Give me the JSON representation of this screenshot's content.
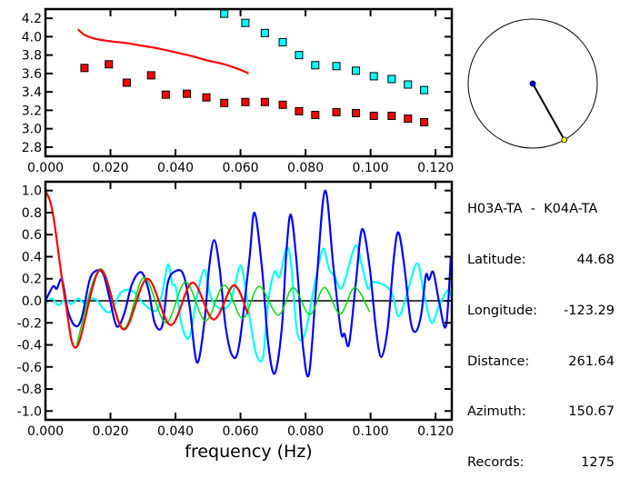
{
  "info": {
    "station_pair": "H03A-TA  -  K04A-TA",
    "rows": [
      {
        "label": "Latitude:",
        "value": "44.68"
      },
      {
        "label": "Longitude:",
        "value": "-123.29"
      },
      {
        "label": "Distance:",
        "value": "261.64"
      },
      {
        "label": "Azimuth:",
        "value": "150.67"
      },
      {
        "label": "Records:",
        "value": "1275"
      }
    ]
  },
  "azimuth_deg": 150.67,
  "colors": {
    "red": "#ff0000",
    "cyan": "#00ffff",
    "blue": "#0000ff",
    "green": "#00dd00",
    "yellow": "#ffff00"
  },
  "chart_data": [
    {
      "type": "scatter",
      "xlim": [
        0,
        0.125
      ],
      "ylim": [
        2.7,
        4.3
      ],
      "xticks": [
        "0.000",
        "0.020",
        "0.040",
        "0.060",
        "0.080",
        "0.100",
        "0.120"
      ],
      "yticks": [
        "2.8",
        "3.0",
        "3.2",
        "3.4",
        "3.6",
        "3.8",
        "4.0",
        "4.2"
      ],
      "series": [
        {
          "kind": "squares",
          "color": "#ff0000",
          "x": [
            0.012,
            0.0195,
            0.025,
            0.0325,
            0.037,
            0.0435,
            0.0495,
            0.055,
            0.0615,
            0.0675,
            0.073,
            0.078,
            0.083,
            0.0895,
            0.0955,
            0.101,
            0.1065,
            0.1115,
            0.1165
          ],
          "y": [
            3.66,
            3.7,
            3.5,
            3.58,
            3.37,
            3.38,
            3.34,
            3.28,
            3.29,
            3.29,
            3.26,
            3.19,
            3.15,
            3.18,
            3.17,
            3.14,
            3.14,
            3.11,
            3.07
          ]
        },
        {
          "kind": "squares",
          "color": "#00ffff",
          "x": [
            0.055,
            0.0615,
            0.0675,
            0.073,
            0.078,
            0.083,
            0.0895,
            0.0955,
            0.101,
            0.1065,
            0.1115,
            0.1165
          ],
          "y": [
            4.25,
            4.15,
            4.04,
            3.94,
            3.8,
            3.69,
            3.68,
            3.63,
            3.57,
            3.54,
            3.48,
            3.42
          ]
        },
        {
          "kind": "line",
          "color": "#ff0000",
          "x": [
            0.01,
            0.012,
            0.015,
            0.02,
            0.025,
            0.03,
            0.035,
            0.04,
            0.045,
            0.05,
            0.055,
            0.06,
            0.0625
          ],
          "y": [
            4.08,
            4.02,
            3.98,
            3.95,
            3.93,
            3.9,
            3.87,
            3.83,
            3.79,
            3.74,
            3.7,
            3.64,
            3.6
          ]
        }
      ]
    },
    {
      "type": "line",
      "xlabel": "frequency (Hz)",
      "xlim": [
        0,
        0.125
      ],
      "ylim": [
        -1.08,
        1.08
      ],
      "xticks": [
        "0.000",
        "0.020",
        "0.040",
        "0.060",
        "0.080",
        "0.100",
        "0.120"
      ],
      "yticks": [
        "-1.0",
        "-0.8",
        "-0.6",
        "-0.4",
        "-0.2",
        "0.0",
        "0.2",
        "0.4",
        "0.6",
        "0.8",
        "1.0"
      ],
      "series": [
        {
          "color": "#00ffff",
          "x": [
            0,
            0.002,
            0.004,
            0.006,
            0.008,
            0.01,
            0.012,
            0.014,
            0.016,
            0.0177,
            0.02,
            0.0228,
            0.0252,
            0.0275,
            0.0303,
            0.034,
            0.0359,
            0.0377,
            0.039,
            0.0401,
            0.042,
            0.0443,
            0.0466,
            0.0489,
            0.0508,
            0.0536,
            0.0564,
            0.0582,
            0.0603,
            0.0629,
            0.0648,
            0.0669,
            0.0685,
            0.0704,
            0.072,
            0.0741,
            0.0755,
            0.0774,
            0.0797,
            0.0825,
            0.0853,
            0.0872,
            0.089,
            0.0913,
            0.0953,
            0.0974,
            0.0992,
            0.1006,
            0.1044,
            0.1067,
            0.1086,
            0.1109,
            0.1143,
            0.1165,
            0.1188,
            0.1211,
            0.1239,
            0.125
          ],
          "y": [
            -0.03,
            0.02,
            -0.04,
            0.01,
            -0.03,
            0.02,
            -0.02,
            0.02,
            0.0,
            -0.07,
            -0.1,
            0.06,
            0.1,
            0.07,
            -0.03,
            -0.09,
            0.07,
            0.33,
            0.15,
            0.12,
            -0.23,
            -0.33,
            0.04,
            0.28,
            0.04,
            -0.07,
            -0.04,
            0.13,
            0.31,
            -0.17,
            -0.48,
            -0.51,
            -0.01,
            0.26,
            0.22,
            0.48,
            0.35,
            -0.28,
            -0.31,
            0.1,
            0.47,
            0.29,
            0.22,
            0.12,
            0.5,
            0.31,
            0.11,
            0.17,
            0.14,
            0.06,
            -0.14,
            0.03,
            0.34,
            0.05,
            -0.2,
            -0.04,
            0.1,
            0.02
          ]
        },
        {
          "color": "#0000ff",
          "x": [
            0,
            0.0023,
            0.0035,
            0.0051,
            0.007,
            0.0093,
            0.0112,
            0.0135,
            0.0154,
            0.0177,
            0.0196,
            0.0219,
            0.0242,
            0.0266,
            0.0294,
            0.0317,
            0.0336,
            0.0359,
            0.0377,
            0.0401,
            0.0424,
            0.0443,
            0.0466,
            0.0489,
            0.0503,
            0.0519,
            0.0536,
            0.0554,
            0.0575,
            0.0596,
            0.0627,
            0.0643,
            0.0666,
            0.0685,
            0.0705,
            0.0727,
            0.0741,
            0.0755,
            0.0774,
            0.0792,
            0.0811,
            0.0834,
            0.086,
            0.0886,
            0.0909,
            0.092,
            0.0934,
            0.0955,
            0.0974,
            0.0997,
            0.1016,
            0.1033,
            0.1053,
            0.1072,
            0.1086,
            0.1104,
            0.1123,
            0.1139,
            0.1156,
            0.117,
            0.118,
            0.1193,
            0.1211,
            0.1232,
            0.1247
          ],
          "y": [
            0.0,
            0.13,
            0.11,
            0.19,
            -0.1,
            -0.23,
            -0.15,
            0.18,
            0.27,
            0.25,
            0.04,
            -0.23,
            -0.12,
            0.15,
            0.26,
            0.1,
            -0.2,
            -0.23,
            0.17,
            0.27,
            0.24,
            -0.04,
            -0.56,
            -0.19,
            0.29,
            0.55,
            0.29,
            -0.23,
            -0.5,
            -0.4,
            0.37,
            0.8,
            0.3,
            -0.38,
            -0.66,
            -0.25,
            0.44,
            0.78,
            0.3,
            -0.41,
            -0.66,
            0.17,
            1.0,
            0.3,
            -0.28,
            -0.3,
            -0.39,
            0.17,
            0.65,
            0.31,
            -0.24,
            -0.51,
            -0.24,
            0.4,
            0.62,
            0.31,
            -0.18,
            -0.28,
            -0.12,
            0.23,
            0.19,
            0.26,
            -0.01,
            -0.23,
            0.4
          ]
        },
        {
          "color": "#00dd00",
          "x": [
            0.0096,
            0.0168,
            0.024,
            0.0303,
            0.037,
            0.0431,
            0.0492,
            0.055,
            0.0606,
            0.0657,
            0.0716,
            0.0762,
            0.0813,
            0.0858,
            0.0906,
            0.0951,
            0.0997
          ],
          "y": [
            -0.4,
            0.29,
            -0.25,
            0.21,
            -0.2,
            0.17,
            -0.18,
            0.14,
            -0.16,
            0.13,
            -0.13,
            0.12,
            -0.125,
            0.12,
            -0.12,
            0.12,
            -0.1
          ]
        },
        {
          "color": "#ff0000",
          "x": [
            0,
            0.0023,
            0.0061,
            0.0096,
            0.0168,
            0.024,
            0.0313,
            0.0385,
            0.0452,
            0.0517,
            0.0579,
            0.0623
          ],
          "y": [
            1.0,
            0.79,
            0.0,
            -0.42,
            0.28,
            -0.26,
            0.2,
            -0.22,
            0.165,
            -0.17,
            0.14,
            -0.12
          ]
        }
      ]
    }
  ]
}
